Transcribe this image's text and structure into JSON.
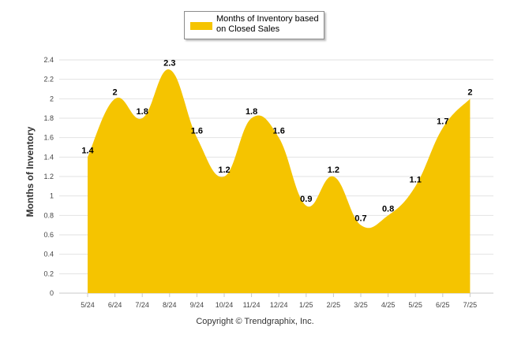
{
  "chart_data": {
    "type": "area",
    "categories": [
      "5/24",
      "6/24",
      "7/24",
      "8/24",
      "9/24",
      "10/24",
      "11/24",
      "12/24",
      "1/25",
      "2/25",
      "3/25",
      "4/25",
      "5/25",
      "6/25",
      "7/25"
    ],
    "series": [
      {
        "name": "Months of Inventory based on Closed Sales",
        "values": [
          1.4,
          2,
          1.8,
          2.3,
          1.6,
          1.2,
          1.8,
          1.6,
          0.9,
          1.2,
          0.7,
          0.8,
          1.1,
          1.7,
          2
        ],
        "labels": [
          "1.4",
          "2",
          "1.8",
          "2.3",
          "1.6",
          "1.2",
          "1.8",
          "1.6",
          "0.9",
          "1.2",
          "0.7",
          "0.8",
          "1.1",
          "1.7",
          "2"
        ]
      }
    ],
    "ylabel": "Months of Inventory",
    "ylim": [
      0,
      2.4
    ],
    "yticks": [
      0,
      0.2,
      0.4,
      0.6,
      0.8,
      1,
      1.2,
      1.4,
      1.6,
      1.8,
      2,
      2.2,
      2.4
    ],
    "ytick_labels": [
      "0",
      "0.2",
      "0.4",
      "0.6",
      "0.8",
      "1",
      "1.2",
      "1.4",
      "1.6",
      "1.8",
      "2",
      "2.2",
      "2.4"
    ],
    "grid": true,
    "legend": "top-center",
    "colors": {
      "fill": "#f5c400",
      "grid": "#e2e2e2",
      "axis": "#c8c8c8"
    }
  },
  "footer": {
    "copyright": "Copyright © Trendgraphix, Inc."
  }
}
